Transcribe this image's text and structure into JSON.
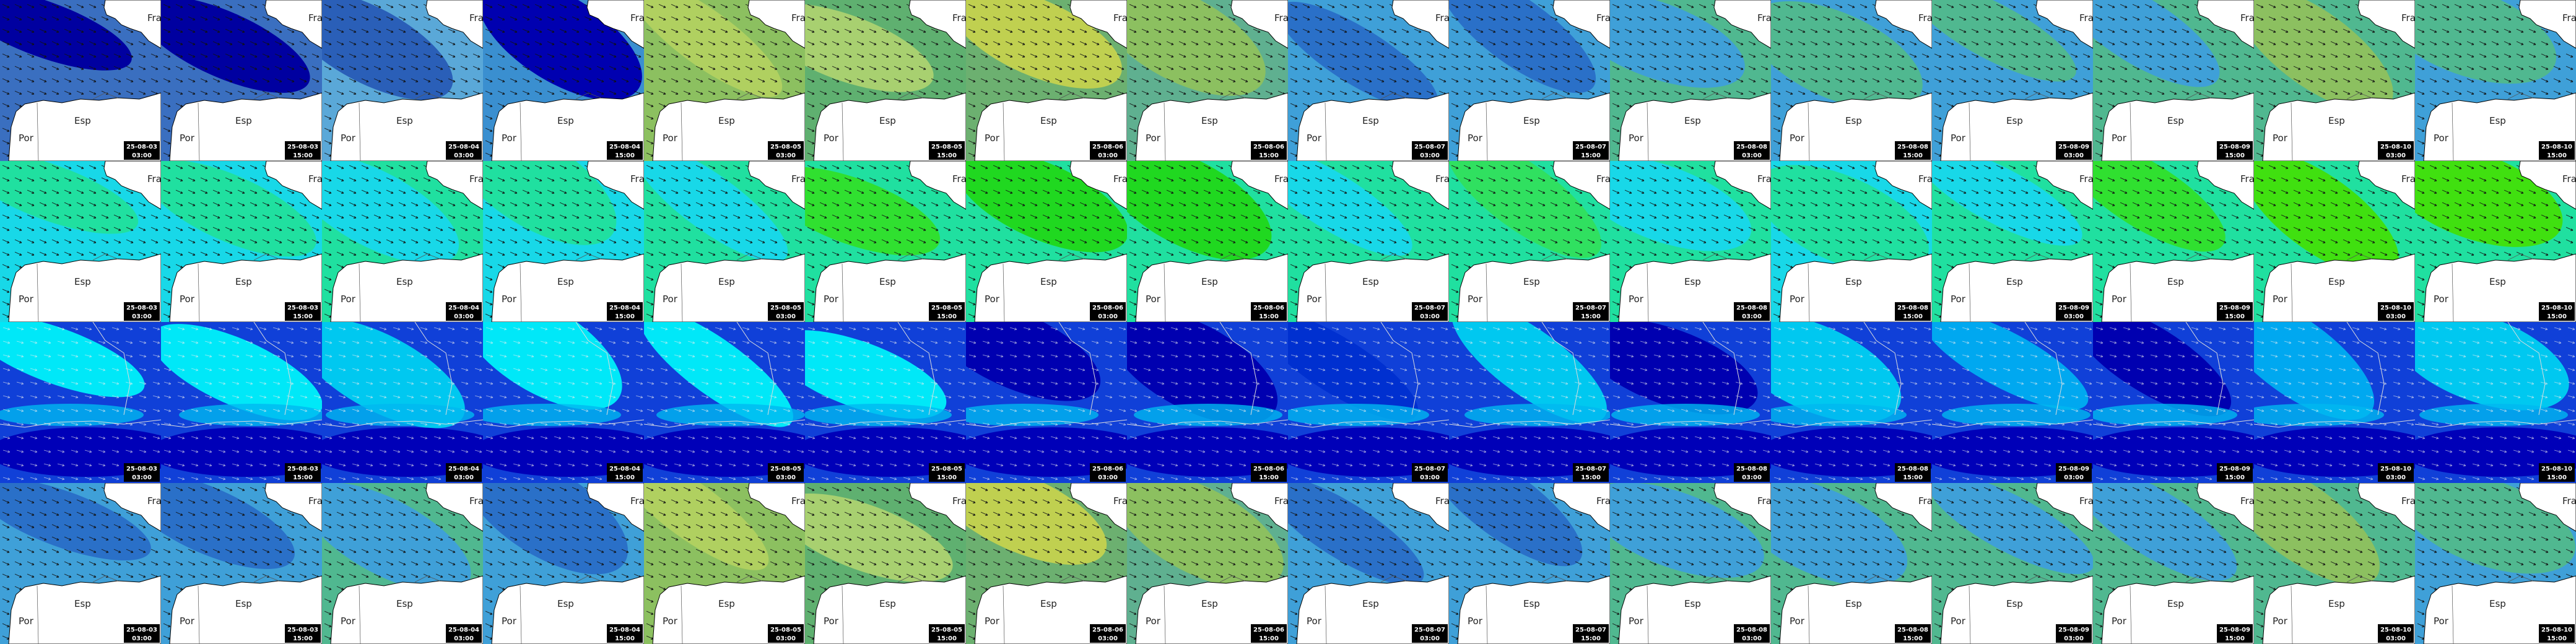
{
  "countries": {
    "fra": "Fra",
    "esp": "Esp",
    "por": "Por"
  },
  "rows": [
    {
      "tiles": [
        {
          "date": "25-08-03",
          "time": "03:00"
        },
        {
          "date": "25-08-03",
          "time": "15:00"
        },
        {
          "date": "25-08-04",
          "time": "03:00"
        },
        {
          "date": "25-08-04",
          "time": "15:00"
        },
        {
          "date": "25-08-05",
          "time": "03:00"
        },
        {
          "date": "25-08-05",
          "time": "15:00"
        },
        {
          "date": "25-08-06",
          "time": "03:00"
        },
        {
          "date": "25-08-06",
          "time": "15:00"
        },
        {
          "date": "25-08-07",
          "time": "03:00"
        },
        {
          "date": "25-08-07",
          "time": "15:00"
        },
        {
          "date": "25-08-08",
          "time": "03:00"
        },
        {
          "date": "25-08-08",
          "time": "15:00"
        },
        {
          "date": "25-08-09",
          "time": "03:00"
        },
        {
          "date": "25-08-09",
          "time": "15:00"
        },
        {
          "date": "25-08-10",
          "time": "03:00"
        },
        {
          "date": "25-08-10",
          "time": "15:00"
        }
      ]
    },
    {
      "tiles": [
        {
          "date": "25-08-03",
          "time": "03:00"
        },
        {
          "date": "25-08-03",
          "time": "15:00"
        },
        {
          "date": "25-08-04",
          "time": "03:00"
        },
        {
          "date": "25-08-04",
          "time": "15:00"
        },
        {
          "date": "25-08-05",
          "time": "03:00"
        },
        {
          "date": "25-08-05",
          "time": "15:00"
        },
        {
          "date": "25-08-06",
          "time": "03:00"
        },
        {
          "date": "25-08-06",
          "time": "15:00"
        },
        {
          "date": "25-08-07",
          "time": "03:00"
        },
        {
          "date": "25-08-07",
          "time": "15:00"
        },
        {
          "date": "25-08-08",
          "time": "03:00"
        },
        {
          "date": "25-08-08",
          "time": "15:00"
        },
        {
          "date": "25-08-09",
          "time": "03:00"
        },
        {
          "date": "25-08-09",
          "time": "15:00"
        },
        {
          "date": "25-08-10",
          "time": "03:00"
        },
        {
          "date": "25-08-10",
          "time": "15:00"
        }
      ]
    },
    {
      "tiles": [
        {
          "date": "25-08-03",
          "time": "03:00"
        },
        {
          "date": "25-08-03",
          "time": "15:00"
        },
        {
          "date": "25-08-04",
          "time": "03:00"
        },
        {
          "date": "25-08-04",
          "time": "15:00"
        },
        {
          "date": "25-08-05",
          "time": "03:00"
        },
        {
          "date": "25-08-05",
          "time": "15:00"
        },
        {
          "date": "25-08-06",
          "time": "03:00"
        },
        {
          "date": "25-08-06",
          "time": "15:00"
        },
        {
          "date": "25-08-07",
          "time": "03:00"
        },
        {
          "date": "25-08-07",
          "time": "15:00"
        },
        {
          "date": "25-08-08",
          "time": "03:00"
        },
        {
          "date": "25-08-08",
          "time": "15:00"
        },
        {
          "date": "25-08-09",
          "time": "03:00"
        },
        {
          "date": "25-08-09",
          "time": "15:00"
        },
        {
          "date": "25-08-10",
          "time": "03:00"
        },
        {
          "date": "25-08-10",
          "time": "15:00"
        }
      ]
    },
    {
      "tiles": [
        {
          "date": "25-08-03",
          "time": "03:00"
        },
        {
          "date": "25-08-03",
          "time": "15:00"
        },
        {
          "date": "25-08-04",
          "time": "03:00"
        },
        {
          "date": "25-08-04",
          "time": "15:00"
        },
        {
          "date": "25-08-05",
          "time": "03:00"
        },
        {
          "date": "25-08-05",
          "time": "15:00"
        },
        {
          "date": "25-08-06",
          "time": "03:00"
        },
        {
          "date": "25-08-06",
          "time": "15:00"
        },
        {
          "date": "25-08-07",
          "time": "03:00"
        },
        {
          "date": "25-08-07",
          "time": "15:00"
        },
        {
          "date": "25-08-08",
          "time": "03:00"
        },
        {
          "date": "25-08-08",
          "time": "15:00"
        },
        {
          "date": "25-08-09",
          "time": "03:00"
        },
        {
          "date": "25-08-09",
          "time": "15:00"
        },
        {
          "date": "25-08-10",
          "time": "03:00"
        },
        {
          "date": "25-08-10",
          "time": "15:00"
        }
      ]
    }
  ]
}
